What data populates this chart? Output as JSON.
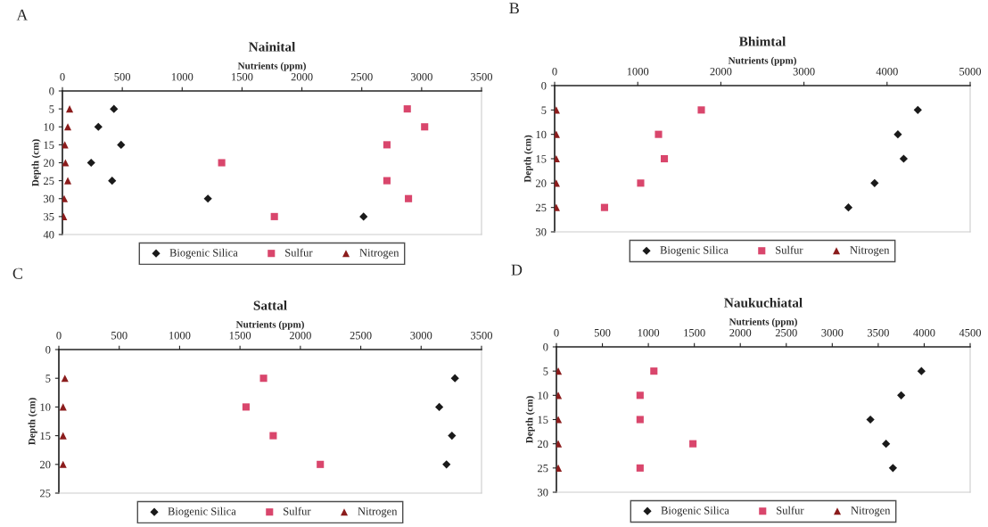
{
  "chart_data": [
    {
      "type": "scatter",
      "title": "Nainital",
      "xlabel": "Nutrients (ppm)",
      "ylabel": "Depth (cm)",
      "annotations": [
        "A"
      ],
      "xlim": [
        0,
        3500
      ],
      "xticks": [
        0,
        500,
        1000,
        1500,
        2000,
        2500,
        3000,
        3500
      ],
      "ylim": [
        40,
        0
      ],
      "yticks": [
        0,
        5,
        10,
        15,
        20,
        25,
        30,
        35,
        40
      ],
      "grid": false,
      "legend": "bottom",
      "series": [
        {
          "name": "Biogenic Silica",
          "color": "#1a1a1a",
          "marker": "diamond",
          "x": [
            430,
            300,
            490,
            240,
            415,
            1215,
            2515
          ],
          "values": [
            5,
            10,
            15,
            20,
            25,
            30,
            35
          ]
        },
        {
          "name": "Sulfur",
          "color": "#d9466c",
          "marker": "square",
          "x": [
            2880,
            3025,
            2710,
            1330,
            2710,
            2890,
            1770
          ],
          "values": [
            5,
            10,
            15,
            20,
            25,
            30,
            35
          ]
        },
        {
          "name": "Nitrogen",
          "color": "#8b1c1c",
          "marker": "triangle",
          "x": [
            60,
            45,
            20,
            25,
            45,
            15,
            10
          ],
          "values": [
            5,
            10,
            15,
            20,
            25,
            30,
            35
          ]
        }
      ]
    },
    {
      "type": "scatter",
      "title": "Bhimtal",
      "xlabel": "Nutrients (ppm)",
      "ylabel": "Depth (cm)",
      "annotations": [
        "B"
      ],
      "xlim": [
        0,
        5000
      ],
      "xticks": [
        0,
        1000,
        2000,
        3000,
        4000,
        5000
      ],
      "ylim": [
        30,
        0
      ],
      "yticks": [
        0,
        5,
        10,
        15,
        20,
        25,
        30
      ],
      "grid": false,
      "legend": "bottom",
      "series": [
        {
          "name": "Biogenic Silica",
          "color": "#1a1a1a",
          "marker": "diamond",
          "x": [
            4370,
            4130,
            4200,
            3850,
            3535
          ],
          "values": [
            5,
            10,
            15,
            20,
            25
          ]
        },
        {
          "name": "Sulfur",
          "color": "#d9466c",
          "marker": "square",
          "x": [
            1765,
            1250,
            1320,
            1035,
            600
          ],
          "values": [
            5,
            10,
            15,
            20,
            25
          ]
        },
        {
          "name": "Nitrogen",
          "color": "#8b1c1c",
          "marker": "triangle",
          "x": [
            20,
            20,
            20,
            20,
            20
          ],
          "values": [
            5,
            10,
            15,
            20,
            25
          ]
        }
      ]
    },
    {
      "type": "scatter",
      "title": "Sattal",
      "xlabel": "Nutrients (ppm)",
      "ylabel": "Depth (cm)",
      "annotations": [
        "C"
      ],
      "xlim": [
        0,
        3500
      ],
      "xticks": [
        0,
        500,
        1000,
        1500,
        2000,
        2500,
        3000,
        3500
      ],
      "ylim": [
        25,
        0
      ],
      "yticks": [
        0,
        5,
        10,
        15,
        20,
        25
      ],
      "grid": false,
      "legend": "bottom",
      "series": [
        {
          "name": "Biogenic Silica",
          "color": "#1a1a1a",
          "marker": "diamond",
          "x": [
            3280,
            3150,
            3255,
            3210
          ],
          "values": [
            5,
            10,
            15,
            20
          ]
        },
        {
          "name": "Sulfur",
          "color": "#d9466c",
          "marker": "square",
          "x": [
            1695,
            1550,
            1775,
            2165
          ],
          "values": [
            5,
            10,
            15,
            20
          ]
        },
        {
          "name": "Nitrogen",
          "color": "#8b1c1c",
          "marker": "triangle",
          "x": [
            50,
            35,
            35,
            35
          ],
          "values": [
            5,
            10,
            15,
            20
          ]
        }
      ]
    },
    {
      "type": "scatter",
      "title": "Naukuchiatal",
      "xlabel": "Nutrients (ppm)",
      "ylabel": "Depth (cm)",
      "annotations": [
        "D"
      ],
      "xlim": [
        0,
        4500
      ],
      "xticks": [
        0,
        500,
        1000,
        1500,
        2000,
        2500,
        3000,
        3500,
        4000,
        4500
      ],
      "ylim": [
        30,
        0
      ],
      "yticks": [
        0,
        5,
        10,
        15,
        20,
        25,
        30
      ],
      "grid": false,
      "legend": "bottom",
      "series": [
        {
          "name": "Biogenic Silica",
          "color": "#1a1a1a",
          "marker": "diamond",
          "x": [
            3970,
            3750,
            3415,
            3585,
            3660
          ],
          "values": [
            5,
            10,
            15,
            20,
            25
          ]
        },
        {
          "name": "Sulfur",
          "color": "#d9466c",
          "marker": "square",
          "x": [
            1060,
            910,
            910,
            1485,
            910
          ],
          "values": [
            5,
            10,
            15,
            20,
            25
          ]
        },
        {
          "name": "Nitrogen",
          "color": "#8b1c1c",
          "marker": "triangle",
          "x": [
            20,
            20,
            20,
            20,
            20
          ],
          "values": [
            5,
            10,
            15,
            20,
            25
          ]
        }
      ]
    }
  ]
}
